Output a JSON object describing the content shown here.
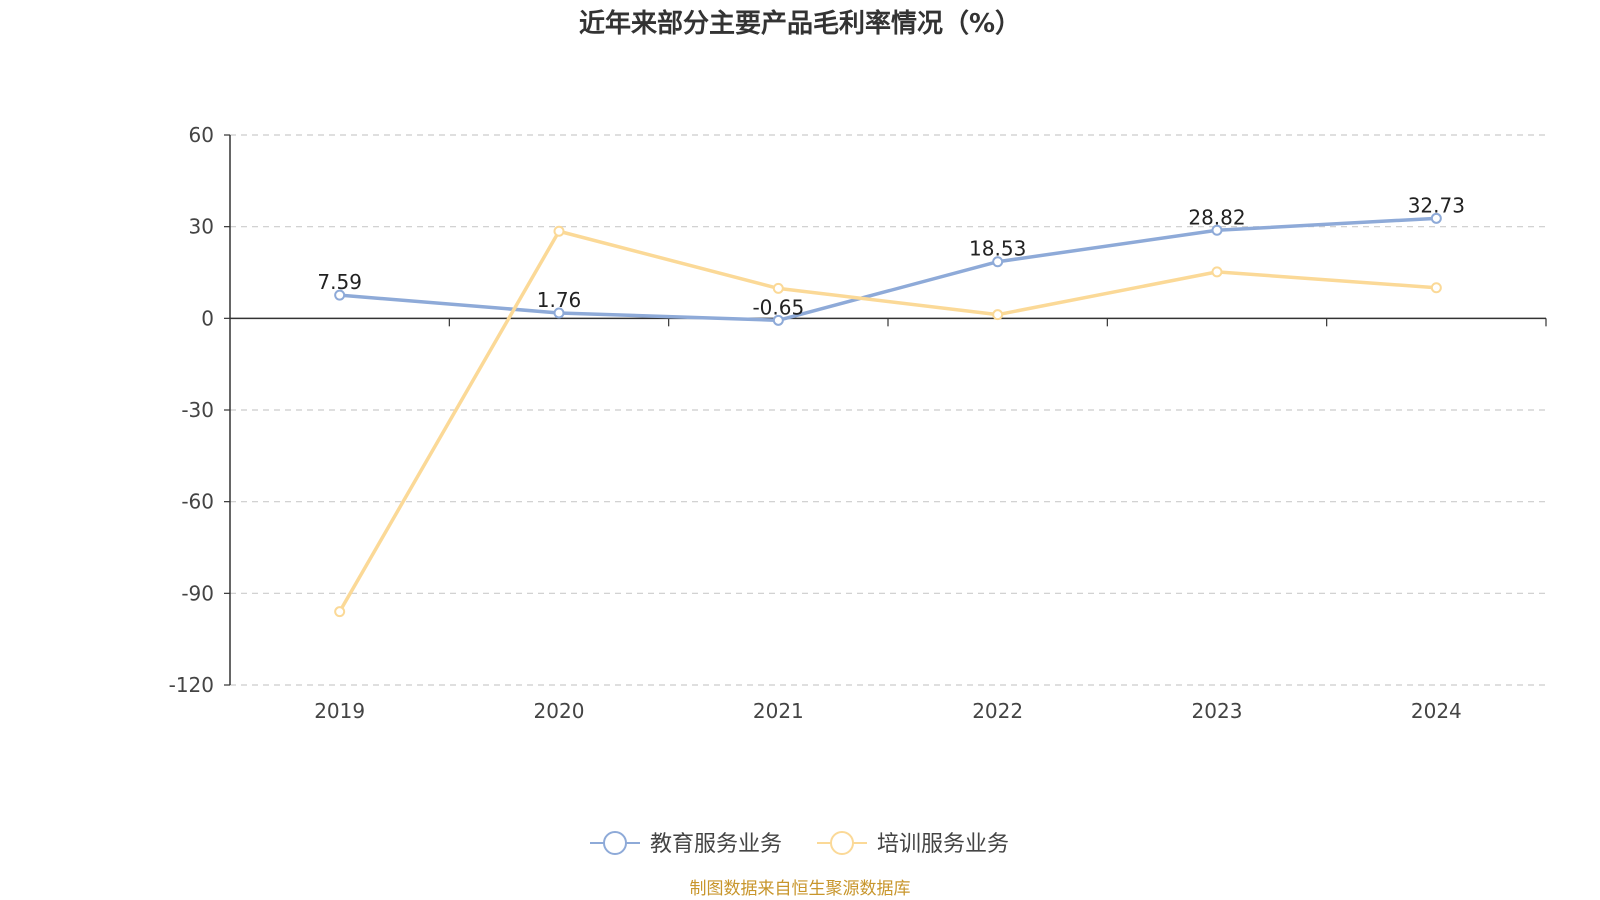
{
  "chart_data": {
    "type": "line",
    "title": "近年来部分主要产品毛利率情况（%）",
    "categories": [
      "2019",
      "2020",
      "2021",
      "2022",
      "2023",
      "2024"
    ],
    "ylim": [
      -120,
      60
    ],
    "yticks": [
      60,
      30,
      0,
      -30,
      -60,
      -90,
      -120
    ],
    "grid": true,
    "legend_position": "bottom-center",
    "series": [
      {
        "name": "教育服务业务",
        "values": [
          7.59,
          1.76,
          -0.65,
          18.53,
          28.82,
          32.73
        ],
        "labels": [
          "7.59",
          "1.76",
          "-0.65",
          "18.53",
          "28.82",
          "32.73"
        ],
        "color": "#8eaad8"
      },
      {
        "name": "培训服务业务",
        "values": [
          -96,
          28.5,
          9.8,
          1.2,
          15.2,
          10
        ],
        "labels": [],
        "color": "#fbd997"
      }
    ],
    "source": "制图数据来自恒生聚源数据库"
  }
}
